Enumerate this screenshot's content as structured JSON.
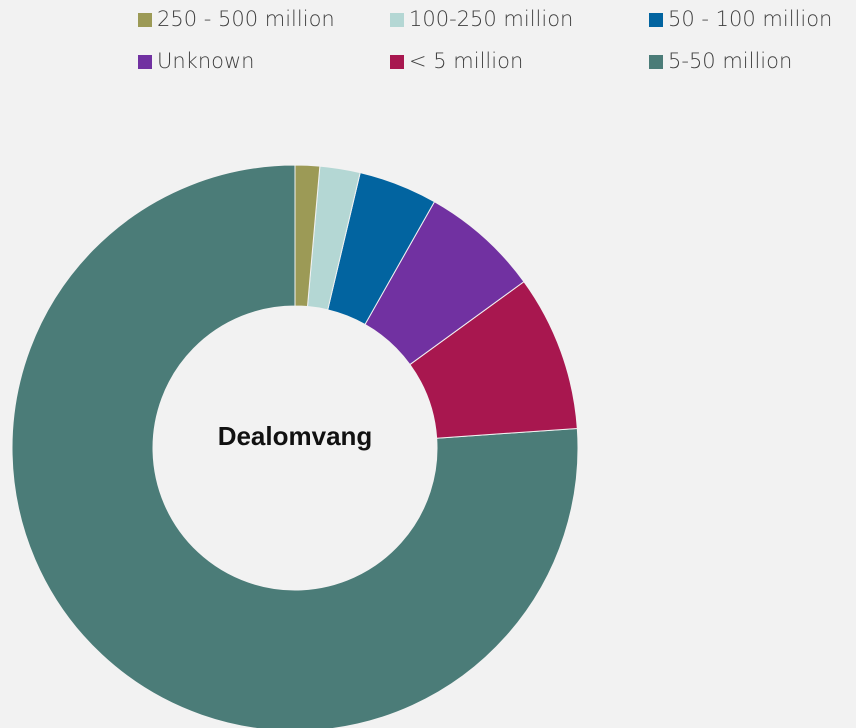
{
  "chart_data": {
    "type": "donut",
    "center_label": "Dealomvang",
    "categories": [
      "250 - 500 million",
      "100-250 million",
      "50 - 100 million",
      "Unknown",
      "< 5 million",
      "5-50 million"
    ],
    "values": [
      1.4,
      2.3,
      4.5,
      6.8,
      8.9,
      76.1
    ],
    "colors": [
      "#9c9a56",
      "#b4d7d4",
      "#0264a0",
      "#7131a1",
      "#a8174f",
      "#4b7c78"
    ],
    "legend": "top"
  }
}
